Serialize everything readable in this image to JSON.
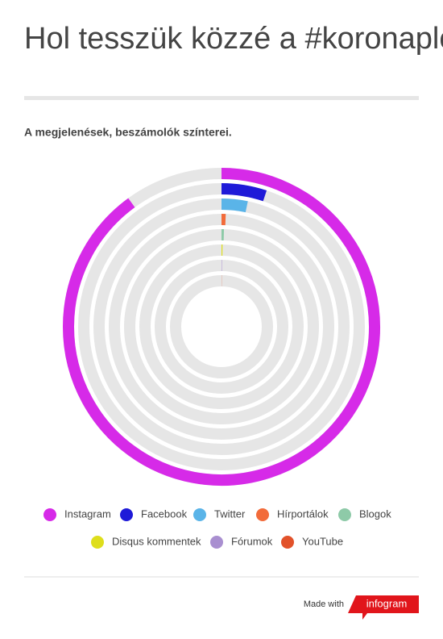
{
  "chart_data": {
    "type": "radial_bar",
    "title": "Hol tesszük közzé a #koronaplónkat?",
    "subtitle": "A megjelenések, beszámolók színterei.",
    "ylim": [
      0,
      100
    ],
    "series": [
      {
        "name": "Instagram",
        "color": "#d62ae8",
        "values": [
          90
        ]
      },
      {
        "name": "Facebook",
        "color": "#1f1ad8",
        "values": [
          5.1
        ]
      },
      {
        "name": "Twitter",
        "color": "#5ab4e8",
        "values": [
          3.3
        ]
      },
      {
        "name": "Hírportálok",
        "color": "#f26b3a",
        "values": [
          0.6
        ]
      },
      {
        "name": "Blogok",
        "color": "#8ecaa8",
        "values": [
          0.4
        ]
      },
      {
        "name": "Disqus kommentek",
        "color": "#dede1c",
        "values": [
          0.2
        ]
      },
      {
        "name": "Fórumok",
        "color": "#a98fd0",
        "values": [
          0.1
        ]
      },
      {
        "name": "YouTube",
        "color": "#e2522a",
        "values": [
          0.05
        ]
      }
    ]
  },
  "footer": {
    "made_with": "Made with",
    "brand": "infogram"
  }
}
